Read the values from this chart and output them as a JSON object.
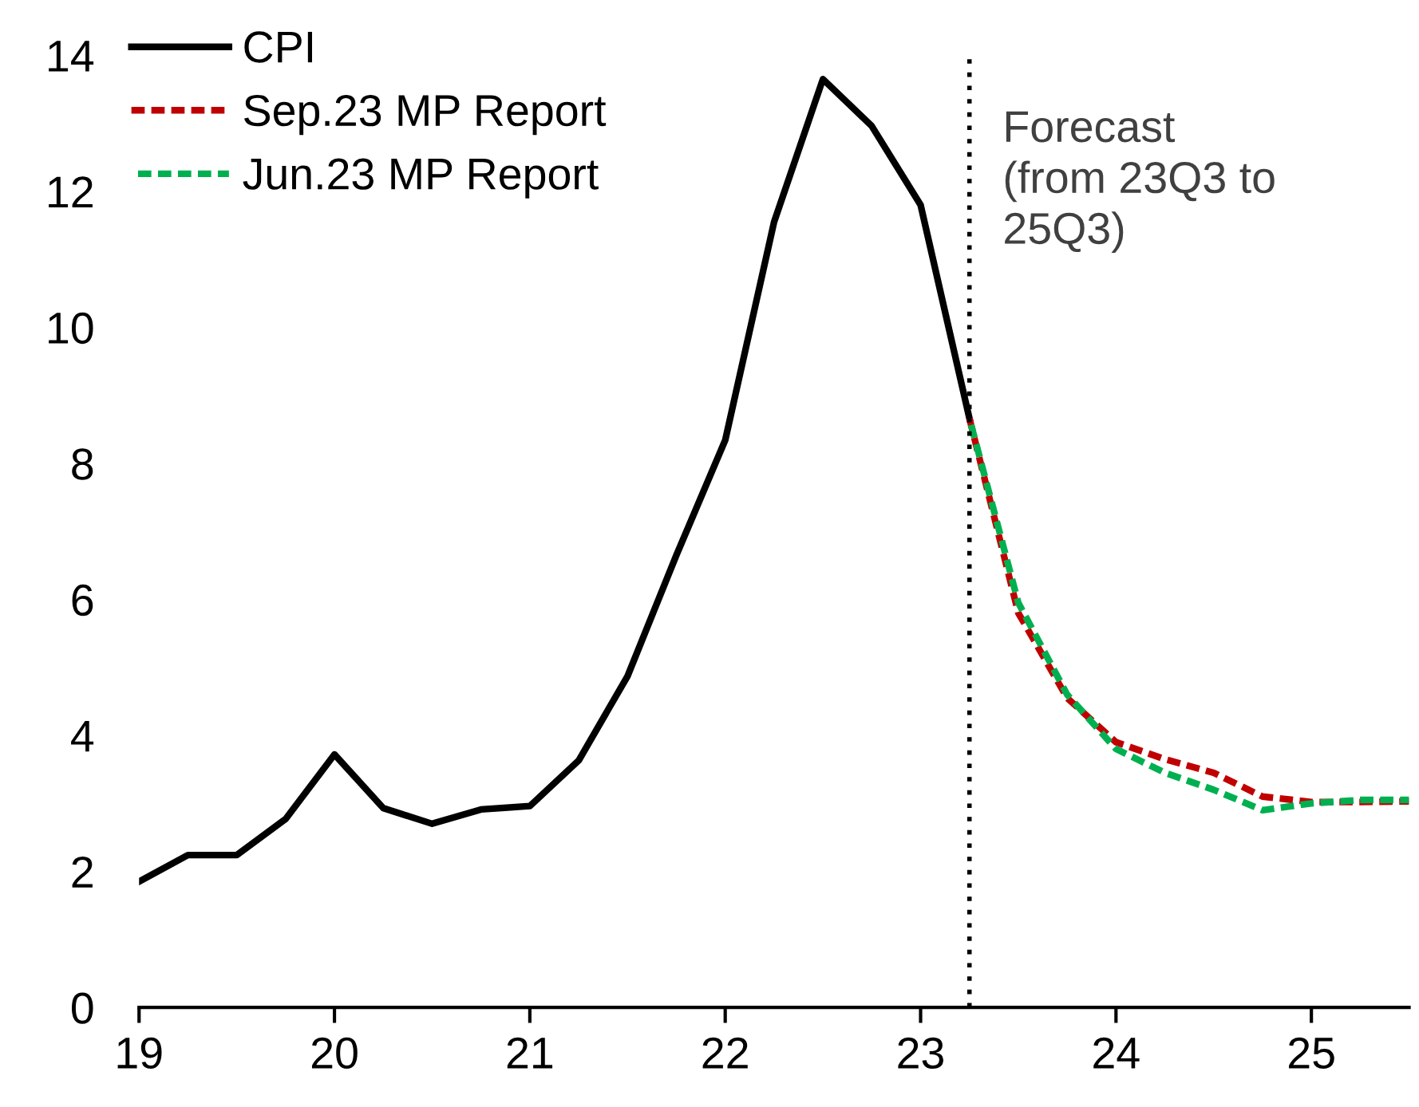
{
  "chart_data": {
    "type": "line",
    "series": [
      {
        "name": "CPI",
        "color": "#000000",
        "line_style": "solid",
        "x": [
          19.0,
          19.25,
          19.5,
          19.75,
          20.0,
          20.25,
          20.5,
          20.75,
          21.0,
          21.25,
          21.5,
          21.75,
          22.0,
          22.25,
          22.5,
          22.75,
          23.0,
          23.25
        ],
        "values": [
          1.85,
          2.24,
          2.24,
          2.77,
          3.72,
          2.93,
          2.7,
          2.91,
          2.96,
          3.63,
          4.87,
          6.65,
          8.34,
          11.55,
          13.65,
          12.96,
          11.8,
          8.66
        ]
      },
      {
        "name": "Sep.23 MP Report",
        "color": "#c00000",
        "line_style": "dashed",
        "x": [
          23.25,
          23.5,
          23.75,
          24.0,
          24.25,
          24.5,
          24.75,
          25.0,
          25.25,
          25.5
        ],
        "values": [
          8.66,
          5.8,
          4.55,
          3.9,
          3.65,
          3.45,
          3.1,
          3.02,
          3.02,
          3.03
        ]
      },
      {
        "name": "Jun.23 MP Report",
        "color": "#00b050",
        "line_style": "dashed",
        "x": [
          23.25,
          23.5,
          23.75,
          24.0,
          24.25,
          24.5,
          24.75,
          25.0,
          25.25,
          25.5
        ],
        "values": [
          8.66,
          5.95,
          4.6,
          3.8,
          3.45,
          3.2,
          2.9,
          3.0,
          3.05,
          3.05
        ]
      }
    ],
    "xlim": [
      19,
      25.5
    ],
    "xticks": [
      19,
      20,
      21,
      22,
      23,
      24,
      25
    ],
    "ylim": [
      0,
      14
    ],
    "yticks": [
      0,
      2,
      4,
      6,
      8,
      10,
      12,
      14
    ],
    "ref_lines": [
      {
        "axis": "x",
        "value": 23.25,
        "label": "Forecast\n(from 23Q3 to\n25Q3)",
        "color": "#000000",
        "line_style": "dotted"
      }
    ],
    "grid": false,
    "legend": "top left"
  }
}
